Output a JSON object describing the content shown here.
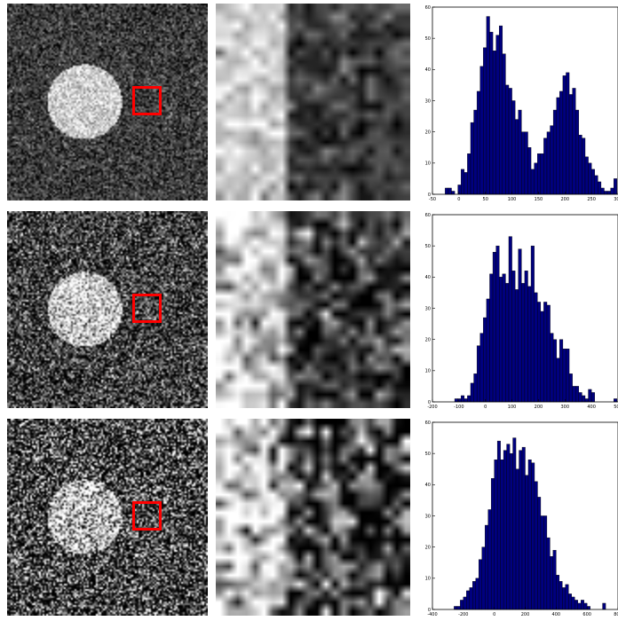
{
  "colors": {
    "bar_fill": "#00007f",
    "bar_edge": "#000000",
    "roi_box": "#ff0000",
    "background": "#ffffff"
  },
  "rows": [
    {
      "noise_level": 1
    },
    {
      "noise_level": 2
    },
    {
      "noise_level": 3
    }
  ],
  "chart_data": [
    {
      "type": "bar",
      "title": "",
      "xlabel": "",
      "ylabel": "",
      "xlim": [
        -50,
        300
      ],
      "ylim": [
        0,
        60
      ],
      "xticks": [
        -50,
        0,
        50,
        100,
        150,
        200,
        250,
        300
      ],
      "yticks": [
        0,
        10,
        20,
        30,
        40,
        50,
        60
      ],
      "bin_width": 6,
      "bin_centers": [
        -35,
        -29,
        -23,
        -17,
        -11,
        -5,
        1,
        7,
        13,
        19,
        25,
        31,
        37,
        43,
        49,
        55,
        61,
        67,
        73,
        79,
        85,
        91,
        97,
        103,
        109,
        115,
        121,
        127,
        133,
        139,
        145,
        151,
        157,
        163,
        169,
        175,
        181,
        187,
        193,
        199,
        205,
        211,
        217,
        223,
        229,
        235,
        241,
        247,
        253,
        259,
        265,
        271,
        277,
        283,
        289,
        295
      ],
      "values": [
        0,
        0,
        2,
        2,
        1,
        0,
        3,
        8,
        7,
        13,
        23,
        27,
        33,
        41,
        47,
        57,
        52,
        46,
        51,
        54,
        45,
        35,
        34,
        30,
        24,
        27,
        20,
        20,
        15,
        8,
        10,
        13,
        13,
        18,
        20,
        22,
        27,
        31,
        33,
        38,
        39,
        32,
        34,
        27,
        19,
        18,
        12,
        10,
        8,
        6,
        4,
        2,
        1,
        1,
        2,
        5
      ]
    },
    {
      "type": "bar",
      "title": "",
      "xlabel": "",
      "ylabel": "",
      "xlim": [
        -200,
        500
      ],
      "ylim": [
        0,
        60
      ],
      "xticks": [
        -200,
        -100,
        0,
        100,
        200,
        300,
        400,
        500
      ],
      "yticks": [
        0,
        10,
        20,
        30,
        40,
        50,
        60
      ],
      "bin_width": 12,
      "bin_centers": [
        -194,
        -182,
        -170,
        -158,
        -146,
        -134,
        -122,
        -110,
        -98,
        -86,
        -74,
        -62,
        -50,
        -38,
        -26,
        -14,
        -2,
        10,
        22,
        34,
        46,
        58,
        70,
        82,
        94,
        106,
        118,
        130,
        142,
        154,
        166,
        178,
        190,
        202,
        214,
        226,
        238,
        250,
        262,
        274,
        286,
        298,
        310,
        322,
        334,
        346,
        358,
        370,
        382,
        394,
        406,
        418,
        430,
        442,
        454,
        466,
        478,
        490
      ],
      "values": [
        0,
        0,
        0,
        0,
        0,
        0,
        0,
        1,
        1,
        2,
        1,
        2,
        6,
        9,
        18,
        22,
        27,
        33,
        41,
        48,
        50,
        40,
        41,
        38,
        53,
        42,
        36,
        49,
        38,
        42,
        37,
        50,
        35,
        32,
        29,
        32,
        31,
        22,
        20,
        14,
        20,
        17,
        17,
        9,
        5,
        5,
        3,
        2,
        1,
        4,
        3,
        0,
        0,
        0,
        0,
        0,
        0,
        1
      ]
    },
    {
      "type": "bar",
      "title": "",
      "xlabel": "",
      "ylabel": "",
      "xlim": [
        -400,
        800
      ],
      "ylim": [
        0,
        60
      ],
      "xticks": [
        -400,
        -200,
        0,
        200,
        400,
        600,
        800
      ],
      "yticks": [
        0,
        10,
        20,
        30,
        40,
        50,
        60
      ],
      "bin_width": 20,
      "bin_centers": [
        -390,
        -370,
        -350,
        -330,
        -310,
        -290,
        -270,
        -250,
        -230,
        -210,
        -190,
        -170,
        -150,
        -130,
        -110,
        -90,
        -70,
        -50,
        -30,
        -10,
        10,
        30,
        50,
        70,
        90,
        110,
        130,
        150,
        170,
        190,
        210,
        230,
        250,
        270,
        290,
        310,
        330,
        350,
        370,
        390,
        410,
        430,
        450,
        470,
        490,
        510,
        530,
        550,
        570,
        590,
        610,
        630,
        650,
        670,
        690,
        710,
        730,
        750,
        770,
        790
      ],
      "values": [
        0,
        0,
        0,
        0,
        0,
        0,
        0,
        1,
        1,
        3,
        4,
        6,
        7,
        9,
        10,
        16,
        20,
        27,
        32,
        42,
        48,
        54,
        48,
        51,
        53,
        50,
        55,
        45,
        51,
        52,
        43,
        48,
        47,
        41,
        36,
        30,
        30,
        23,
        17,
        19,
        11,
        9,
        7,
        8,
        5,
        4,
        3,
        2,
        3,
        2,
        1,
        0,
        0,
        0,
        0,
        2,
        0,
        0,
        0,
        0
      ]
    }
  ]
}
